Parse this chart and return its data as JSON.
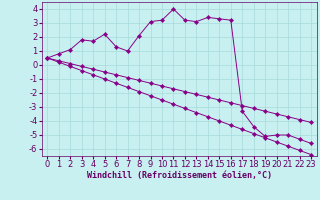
{
  "xlabel": "Windchill (Refroidissement éolien,°C)",
  "bg_color": "#c8f0f0",
  "grid_color": "#a8dada",
  "line_color": "#880088",
  "x_values": [
    0,
    1,
    2,
    3,
    4,
    5,
    6,
    7,
    8,
    9,
    10,
    11,
    12,
    13,
    14,
    15,
    16,
    17,
    18,
    19,
    20,
    21,
    22,
    23
  ],
  "line1_y": [
    0.5,
    0.8,
    1.1,
    1.8,
    1.7,
    2.2,
    1.3,
    1.0,
    2.1,
    3.1,
    3.2,
    4.0,
    3.2,
    3.1,
    3.4,
    3.3,
    3.2,
    -3.3,
    -4.4,
    -5.1,
    -5.0,
    -5.0,
    -5.3,
    -5.6
  ],
  "line2_y": [
    0.5,
    0.3,
    0.1,
    -0.1,
    -0.3,
    -0.5,
    -0.7,
    -0.9,
    -1.1,
    -1.3,
    -1.5,
    -1.7,
    -1.9,
    -2.1,
    -2.3,
    -2.5,
    -2.7,
    -2.9,
    -3.1,
    -3.3,
    -3.5,
    -3.7,
    -3.9,
    -4.1
  ],
  "line3_y": [
    0.5,
    0.2,
    -0.1,
    -0.4,
    -0.7,
    -1.0,
    -1.3,
    -1.6,
    -1.9,
    -2.2,
    -2.5,
    -2.8,
    -3.1,
    -3.4,
    -3.7,
    -4.0,
    -4.3,
    -4.6,
    -4.9,
    -5.2,
    -5.5,
    -5.8,
    -6.1,
    -6.4
  ],
  "ylim": [
    -6.5,
    4.5
  ],
  "xlim": [
    -0.5,
    23.5
  ],
  "yticks": [
    -6,
    -5,
    -4,
    -3,
    -2,
    -1,
    0,
    1,
    2,
    3,
    4
  ],
  "xticks": [
    0,
    1,
    2,
    3,
    4,
    5,
    6,
    7,
    8,
    9,
    10,
    11,
    12,
    13,
    14,
    15,
    16,
    17,
    18,
    19,
    20,
    21,
    22,
    23
  ],
  "tick_color": "#660066",
  "xlabel_color": "#660066",
  "font_size_axis": 6,
  "font_size_ticks": 6
}
